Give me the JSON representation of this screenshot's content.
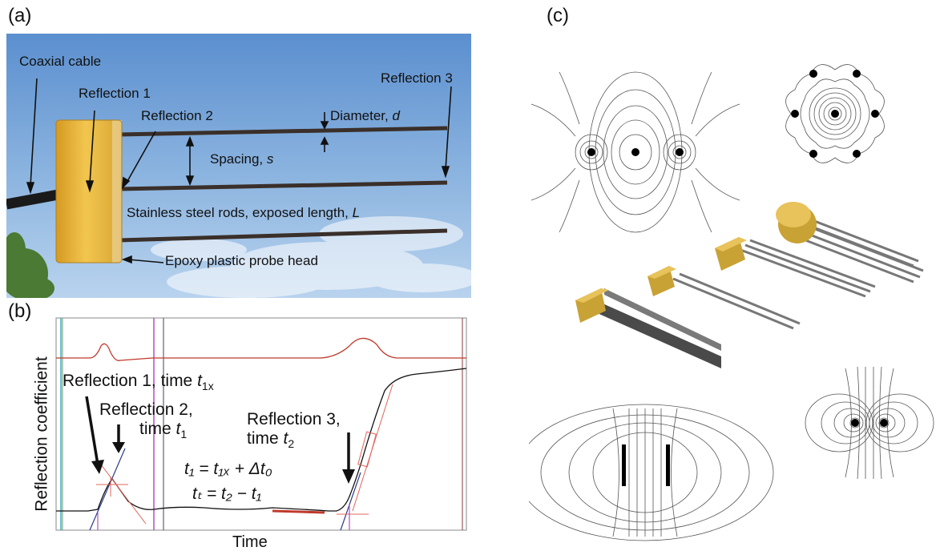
{
  "panels": {
    "a": "(a)",
    "b": "(b)",
    "c": "(c)"
  },
  "panel_a": {
    "coaxial_cable": "Coaxial cable",
    "reflection_1": "Reflection 1",
    "reflection_2": "Reflection 2",
    "reflection_3": "Reflection 3",
    "diameter_text": "Diameter, ",
    "diameter_var": "d",
    "spacing_text": "Spacing, ",
    "spacing_var": "s",
    "rods_text": "Stainless steel rods, exposed length, ",
    "rods_var": "L",
    "probe_head": "Epoxy plastic probe head"
  },
  "panel_b": {
    "ylabel": "Reflection coefficient",
    "xlabel": "Time",
    "refl1_text": "Reflection 1, time ",
    "refl1_var": "t",
    "refl1_sub": "1x",
    "refl2_line1": "Reflection 2,",
    "refl2_text": "time ",
    "refl2_var": "t",
    "refl2_sub": "1",
    "refl3_line1": "Reflection 3,",
    "refl3_text": "time ",
    "refl3_var": "t",
    "refl3_sub": "2",
    "eq1": "t₁ =  t₁ₓ + Δt₀",
    "eq2": "tₜ =  t₂ − t₁"
  },
  "colors": {
    "sky": "#6f9fd4",
    "epoxy": "#e8b63a",
    "gold": "#c9a235",
    "red_trace": "#c0392b",
    "magenta_marker": "#b44fc0"
  }
}
